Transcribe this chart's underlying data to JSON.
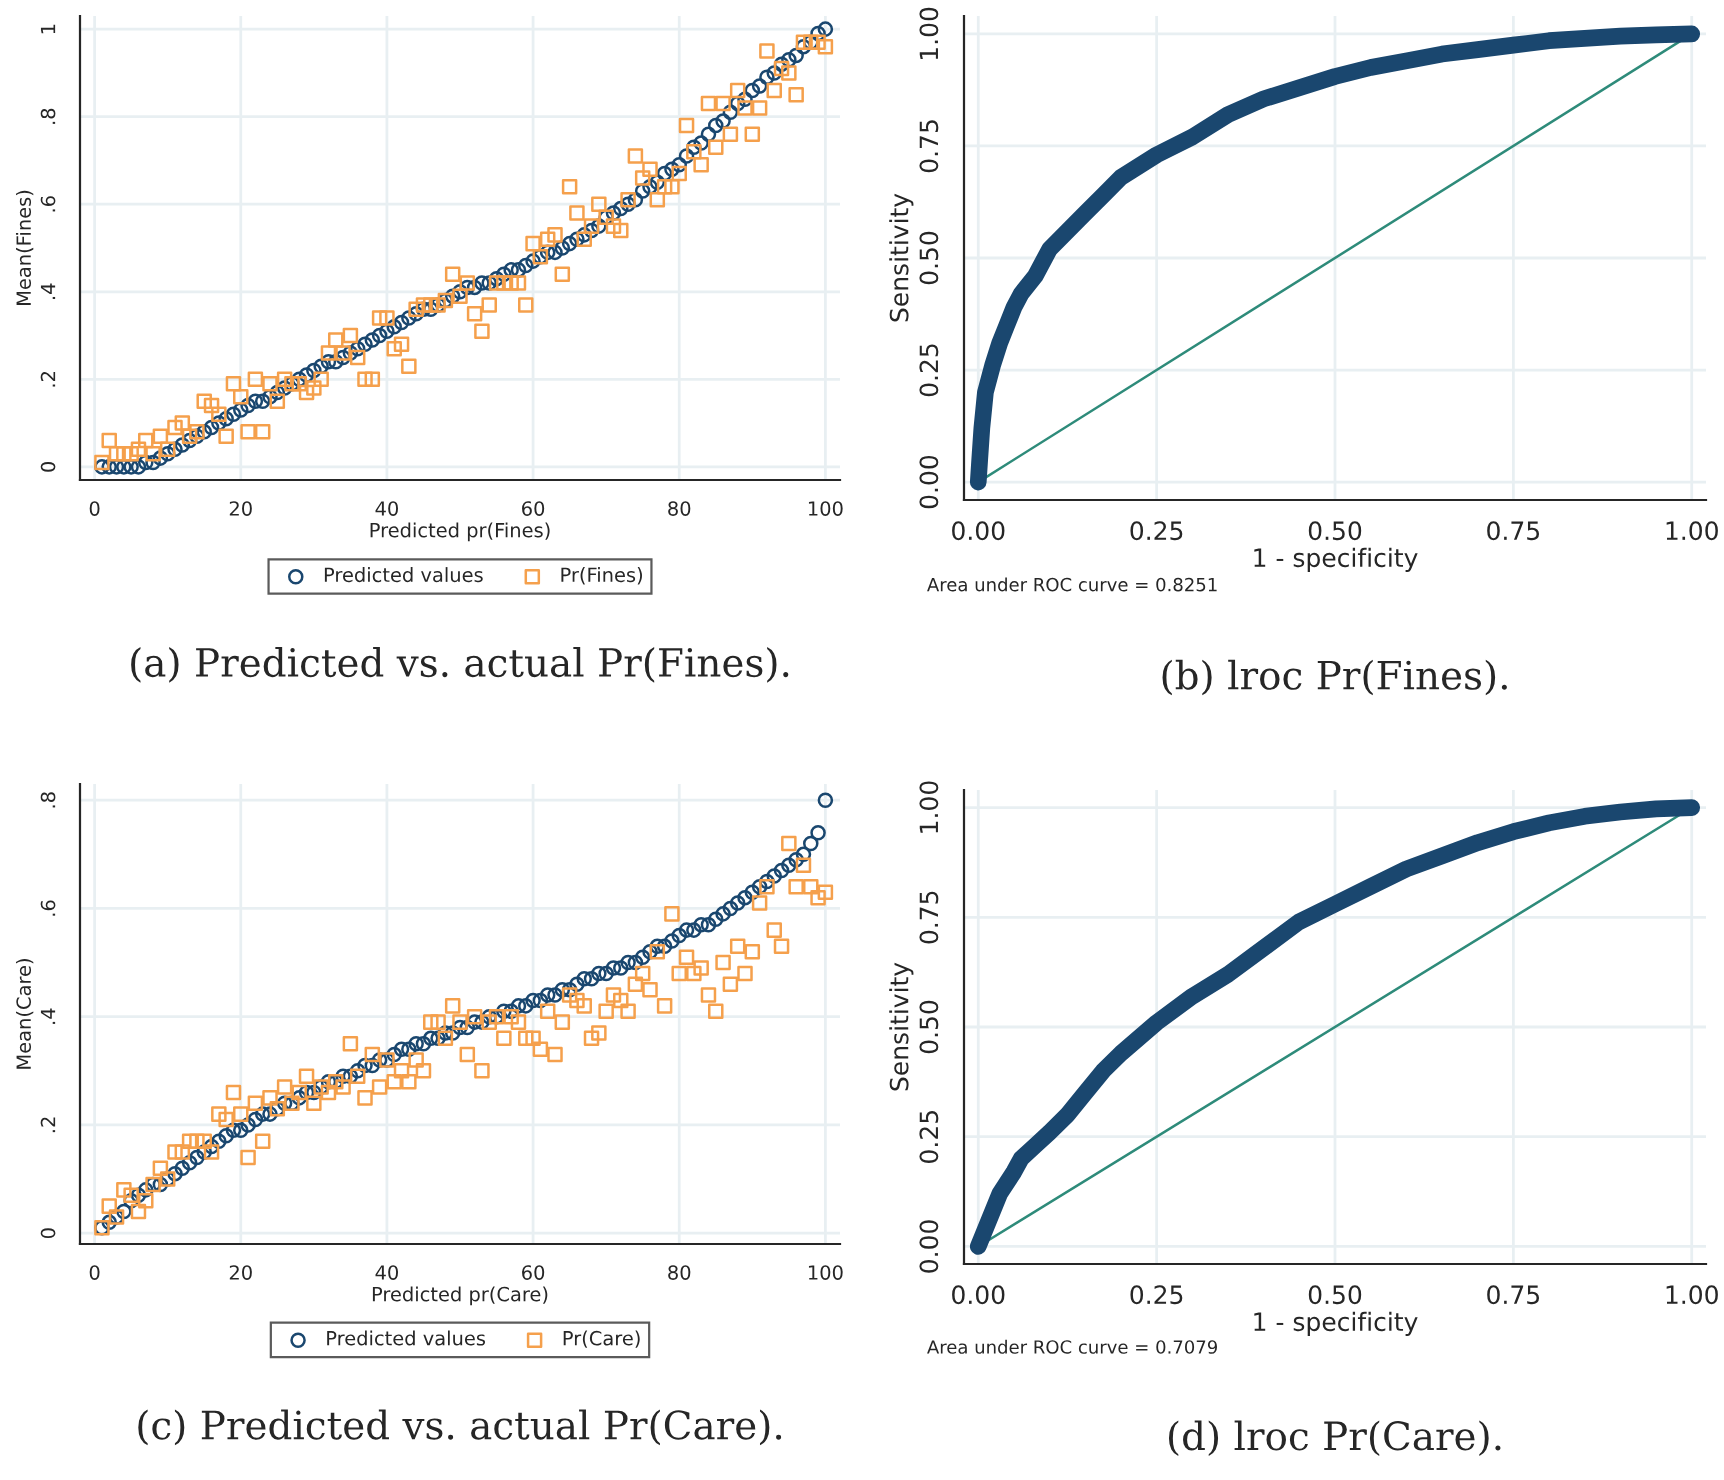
{
  "chart_data": [
    {
      "type": "scatter",
      "xlabel": "Predicted pr(Fines)",
      "ylabel": "Mean(Fines)",
      "x": [
        1,
        2,
        3,
        4,
        5,
        6,
        7,
        8,
        9,
        10,
        11,
        12,
        13,
        14,
        15,
        16,
        17,
        18,
        19,
        20,
        21,
        22,
        23,
        24,
        25,
        26,
        27,
        28,
        29,
        30,
        31,
        32,
        33,
        34,
        35,
        36,
        37,
        38,
        39,
        40,
        41,
        42,
        43,
        44,
        45,
        46,
        47,
        48,
        49,
        50,
        51,
        52,
        53,
        54,
        55,
        56,
        57,
        58,
        59,
        60,
        61,
        62,
        63,
        64,
        65,
        66,
        67,
        68,
        69,
        70,
        71,
        72,
        73,
        74,
        75,
        76,
        77,
        78,
        79,
        80,
        81,
        82,
        83,
        84,
        85,
        86,
        87,
        88,
        89,
        90,
        91,
        92,
        93,
        94,
        95,
        96,
        97,
        98,
        99,
        100
      ],
      "series": [
        {
          "name": "Predicted values",
          "color": "#1a476f",
          "marker": "circle",
          "values": [
            0,
            0,
            0,
            0,
            0,
            0,
            0.01,
            0.01,
            0.02,
            0.03,
            0.04,
            0.05,
            0.06,
            0.07,
            0.08,
            0.09,
            0.1,
            0.11,
            0.12,
            0.13,
            0.14,
            0.15,
            0.15,
            0.16,
            0.17,
            0.18,
            0.19,
            0.2,
            0.21,
            0.22,
            0.23,
            0.24,
            0.24,
            0.25,
            0.26,
            0.27,
            0.28,
            0.29,
            0.3,
            0.31,
            0.32,
            0.33,
            0.34,
            0.35,
            0.36,
            0.36,
            0.37,
            0.38,
            0.39,
            0.4,
            0.41,
            0.41,
            0.42,
            0.42,
            0.43,
            0.44,
            0.45,
            0.45,
            0.46,
            0.47,
            0.48,
            0.49,
            0.49,
            0.5,
            0.51,
            0.52,
            0.53,
            0.54,
            0.55,
            0.57,
            0.58,
            0.59,
            0.6,
            0.61,
            0.63,
            0.64,
            0.65,
            0.67,
            0.68,
            0.69,
            0.71,
            0.73,
            0.74,
            0.76,
            0.78,
            0.79,
            0.81,
            0.83,
            0.84,
            0.86,
            0.87,
            0.89,
            0.9,
            0.92,
            0.93,
            0.94,
            0.96,
            0.97,
            0.99,
            1.0
          ]
        },
        {
          "name": "Pr(Fines)",
          "color": "#f5a04c",
          "marker": "square",
          "values": [
            0.01,
            0.06,
            0.03,
            0.03,
            0.03,
            0.04,
            0.06,
            0.03,
            0.07,
            0.04,
            0.09,
            0.1,
            0.07,
            0.08,
            0.15,
            0.14,
            0.12,
            0.07,
            0.19,
            0.16,
            0.08,
            0.2,
            0.08,
            0.19,
            0.15,
            0.2,
            0.19,
            0.19,
            0.17,
            0.18,
            0.2,
            0.26,
            0.29,
            0.26,
            0.3,
            0.25,
            0.2,
            0.2,
            0.34,
            0.34,
            0.27,
            0.28,
            0.23,
            0.36,
            0.37,
            0.37,
            0.37,
            0.38,
            0.44,
            0.39,
            0.42,
            0.35,
            0.31,
            0.37,
            0.42,
            0.42,
            0.42,
            0.42,
            0.37,
            0.51,
            0.48,
            0.52,
            0.53,
            0.44,
            0.64,
            0.58,
            0.52,
            0.55,
            0.6,
            0.57,
            0.55,
            0.54,
            0.61,
            0.71,
            0.66,
            0.68,
            0.61,
            0.64,
            0.64,
            0.67,
            0.78,
            0.72,
            0.69,
            0.83,
            0.73,
            0.83,
            0.76,
            0.86,
            0.82,
            0.76,
            0.82,
            0.95,
            0.86,
            0.91,
            0.9,
            0.85,
            0.97,
            0.97,
            0.97,
            0.96
          ]
        }
      ],
      "xlim": [
        -2,
        102
      ],
      "xticks": [
        0,
        20,
        40,
        60,
        80,
        100
      ],
      "ylim": [
        -0.03,
        1.03
      ],
      "yticks": [
        0,
        {
          "value": 0.2,
          "label": ".2"
        },
        {
          "value": 0.4,
          "label": ".4"
        },
        {
          "value": 0.6,
          "label": ".6"
        },
        {
          "value": 0.8,
          "label": ".8"
        },
        1
      ],
      "grid": true,
      "legend": "bottom",
      "annotations": [
        "(a) Predicted vs. actual Pr(Fines)."
      ]
    },
    {
      "type": "line",
      "xlabel": "1 - specificity",
      "ylabel": "Sensitivity",
      "series": [
        {
          "color": "#1a476f",
          "x": [
            0,
            0.002,
            0.005,
            0.01,
            0.02,
            0.03,
            0.04,
            0.05,
            0.06,
            0.08,
            0.1,
            0.125,
            0.15,
            0.175,
            0.2,
            0.25,
            0.3,
            0.35,
            0.4,
            0.45,
            0.5,
            0.55,
            0.6,
            0.65,
            0.7,
            0.75,
            0.8,
            0.85,
            0.9,
            0.95,
            1
          ],
          "values": [
            0,
            0.05,
            0.12,
            0.2,
            0.26,
            0.31,
            0.35,
            0.39,
            0.42,
            0.46,
            0.52,
            0.56,
            0.6,
            0.64,
            0.68,
            0.73,
            0.77,
            0.82,
            0.855,
            0.88,
            0.905,
            0.925,
            0.94,
            0.955,
            0.965,
            0.975,
            0.985,
            0.99,
            0.995,
            0.998,
            1
          ]
        },
        {
          "color": "#2e8b7a",
          "x": [
            0,
            1
          ],
          "values": [
            0,
            1
          ]
        }
      ],
      "xlim": [
        -0.02,
        1.02
      ],
      "xticks": [
        {
          "value": 0,
          "label": "0.00"
        },
        {
          "value": 0.25,
          "label": "0.25"
        },
        {
          "value": 0.5,
          "label": "0.50"
        },
        {
          "value": 0.75,
          "label": "0.75"
        },
        {
          "value": 1,
          "label": "1.00"
        }
      ],
      "ylim": [
        -0.04,
        1.04
      ],
      "yticks": [
        {
          "value": 0,
          "label": "0.00"
        },
        {
          "value": 0.25,
          "label": "0.25"
        },
        {
          "value": 0.5,
          "label": "0.50"
        },
        {
          "value": 0.75,
          "label": "0.75"
        },
        {
          "value": 1,
          "label": "1.00"
        }
      ],
      "grid": true,
      "annotations": [
        "Area under ROC curve = 0.8251",
        "(b) lroc Pr(Fines)."
      ]
    },
    {
      "type": "scatter",
      "xlabel": "Predicted pr(Care)",
      "ylabel": "Mean(Care)",
      "x": [
        1,
        2,
        3,
        4,
        5,
        6,
        7,
        8,
        9,
        10,
        11,
        12,
        13,
        14,
        15,
        16,
        17,
        18,
        19,
        20,
        21,
        22,
        23,
        24,
        25,
        26,
        27,
        28,
        29,
        30,
        31,
        32,
        33,
        34,
        35,
        36,
        37,
        38,
        39,
        40,
        41,
        42,
        43,
        44,
        45,
        46,
        47,
        48,
        49,
        50,
        51,
        52,
        53,
        54,
        55,
        56,
        57,
        58,
        59,
        60,
        61,
        62,
        63,
        64,
        65,
        66,
        67,
        68,
        69,
        70,
        71,
        72,
        73,
        74,
        75,
        76,
        77,
        78,
        79,
        80,
        81,
        82,
        83,
        84,
        85,
        86,
        87,
        88,
        89,
        90,
        91,
        92,
        93,
        94,
        95,
        96,
        97,
        98,
        99,
        100
      ],
      "series": [
        {
          "name": "Predicted values",
          "color": "#1a476f",
          "marker": "circle",
          "values": [
            0.01,
            0.02,
            0.03,
            0.04,
            0.06,
            0.07,
            0.08,
            0.09,
            0.09,
            0.1,
            0.11,
            0.12,
            0.13,
            0.14,
            0.15,
            0.16,
            0.17,
            0.18,
            0.19,
            0.19,
            0.2,
            0.21,
            0.22,
            0.22,
            0.23,
            0.24,
            0.24,
            0.25,
            0.26,
            0.26,
            0.27,
            0.28,
            0.28,
            0.29,
            0.29,
            0.3,
            0.31,
            0.31,
            0.32,
            0.32,
            0.33,
            0.34,
            0.34,
            0.35,
            0.35,
            0.36,
            0.36,
            0.37,
            0.37,
            0.38,
            0.38,
            0.39,
            0.39,
            0.4,
            0.4,
            0.41,
            0.41,
            0.42,
            0.42,
            0.43,
            0.43,
            0.44,
            0.44,
            0.45,
            0.45,
            0.46,
            0.47,
            0.47,
            0.48,
            0.48,
            0.49,
            0.49,
            0.5,
            0.5,
            0.51,
            0.52,
            0.53,
            0.53,
            0.54,
            0.55,
            0.56,
            0.56,
            0.57,
            0.57,
            0.58,
            0.59,
            0.6,
            0.61,
            0.62,
            0.63,
            0.64,
            0.65,
            0.66,
            0.67,
            0.68,
            0.69,
            0.7,
            0.72,
            0.74,
            0.8
          ]
        },
        {
          "name": "Pr(Care)",
          "color": "#f5a04c",
          "marker": "square",
          "values": [
            0.01,
            0.05,
            0.03,
            0.08,
            0.07,
            0.04,
            0.06,
            0.09,
            0.12,
            0.1,
            0.15,
            0.15,
            0.17,
            0.17,
            0.17,
            0.15,
            0.22,
            0.21,
            0.26,
            0.22,
            0.14,
            0.24,
            0.17,
            0.25,
            0.23,
            0.27,
            0.24,
            0.26,
            0.29,
            0.24,
            0.27,
            0.26,
            0.28,
            0.27,
            0.35,
            0.29,
            0.25,
            0.33,
            0.27,
            0.32,
            0.28,
            0.3,
            0.28,
            0.32,
            0.3,
            0.39,
            0.39,
            0.36,
            0.42,
            0.39,
            0.33,
            0.4,
            0.3,
            0.39,
            0.4,
            0.36,
            0.4,
            0.39,
            0.36,
            0.36,
            0.34,
            0.41,
            0.33,
            0.39,
            0.44,
            0.43,
            0.42,
            0.36,
            0.37,
            0.41,
            0.44,
            0.43,
            0.41,
            0.46,
            0.48,
            0.45,
            0.52,
            0.42,
            0.59,
            0.48,
            0.51,
            0.48,
            0.49,
            0.44,
            0.41,
            0.5,
            0.46,
            0.53,
            0.48,
            0.52,
            0.61,
            0.64,
            0.56,
            0.53,
            0.72,
            0.64,
            0.68,
            0.64,
            0.62,
            0.63
          ]
        }
      ],
      "xlim": [
        -2,
        102
      ],
      "xticks": [
        0,
        20,
        40,
        60,
        80,
        100
      ],
      "ylim": [
        -0.02,
        0.83
      ],
      "yticks": [
        0,
        {
          "value": 0.2,
          "label": ".2"
        },
        {
          "value": 0.4,
          "label": ".4"
        },
        {
          "value": 0.6,
          "label": ".6"
        },
        {
          "value": 0.8,
          "label": ".8"
        }
      ],
      "grid": true,
      "legend": "bottom",
      "annotations": [
        "(c) Predicted vs. actual Pr(Care)."
      ]
    },
    {
      "type": "line",
      "xlabel": "1 - specificity",
      "ylabel": "Sensitivity",
      "series": [
        {
          "color": "#1a476f",
          "x": [
            0,
            0.01,
            0.02,
            0.03,
            0.05,
            0.06,
            0.08,
            0.1,
            0.125,
            0.15,
            0.175,
            0.2,
            0.25,
            0.3,
            0.35,
            0.4,
            0.45,
            0.5,
            0.55,
            0.6,
            0.65,
            0.7,
            0.75,
            0.8,
            0.85,
            0.9,
            0.95,
            1
          ],
          "values": [
            0,
            0.04,
            0.08,
            0.12,
            0.17,
            0.2,
            0.23,
            0.26,
            0.3,
            0.35,
            0.4,
            0.44,
            0.51,
            0.57,
            0.62,
            0.68,
            0.74,
            0.78,
            0.82,
            0.86,
            0.89,
            0.92,
            0.945,
            0.965,
            0.98,
            0.99,
            0.997,
            1
          ]
        },
        {
          "color": "#2e8b7a",
          "x": [
            0,
            1
          ],
          "values": [
            0,
            1
          ]
        }
      ],
      "xlim": [
        -0.02,
        1.02
      ],
      "xticks": [
        {
          "value": 0,
          "label": "0.00"
        },
        {
          "value": 0.25,
          "label": "0.25"
        },
        {
          "value": 0.5,
          "label": "0.50"
        },
        {
          "value": 0.75,
          "label": "0.75"
        },
        {
          "value": 1,
          "label": "1.00"
        }
      ],
      "ylim": [
        -0.04,
        1.04
      ],
      "yticks": [
        {
          "value": 0,
          "label": "0.00"
        },
        {
          "value": 0.25,
          "label": "0.25"
        },
        {
          "value": 0.5,
          "label": "0.50"
        },
        {
          "value": 0.75,
          "label": "0.75"
        },
        {
          "value": 1,
          "label": "1.00"
        }
      ],
      "grid": true,
      "annotations": [
        "Area under ROC curve = 0.7079",
        "(d) lroc Pr(Care)."
      ]
    }
  ]
}
